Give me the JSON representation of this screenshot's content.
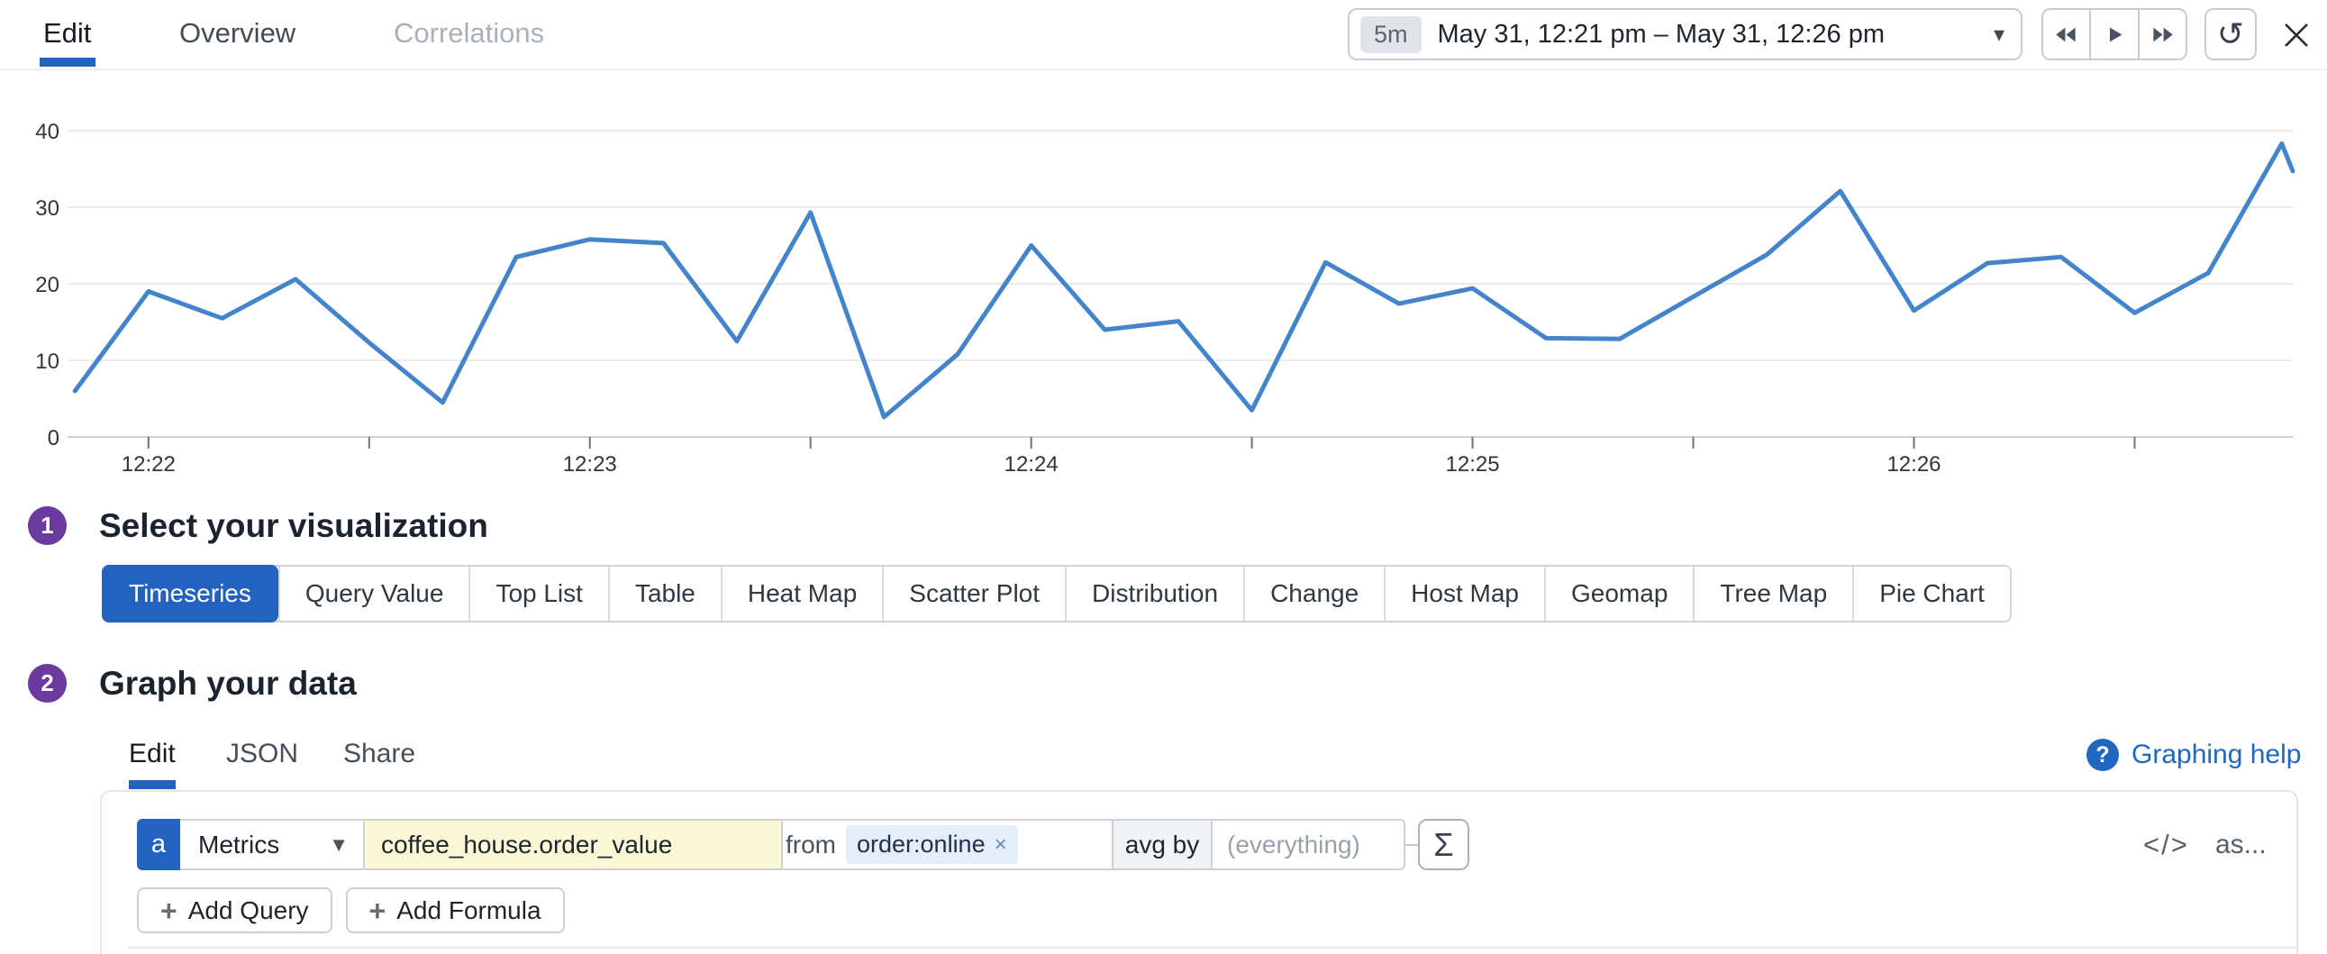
{
  "header": {
    "tabs": [
      {
        "label": "Edit",
        "active": true
      },
      {
        "label": "Overview",
        "active": false
      },
      {
        "label": "Correlations",
        "active": false
      }
    ],
    "time_range": {
      "preset": "5m",
      "label": "May 31, 12:21 pm – May 31, 12:26 pm"
    }
  },
  "icons": {
    "dropdown_caret": "▾",
    "select_caret": "▼",
    "refresh": "↺",
    "question": "?",
    "plus": "+",
    "tag_remove": "×"
  },
  "chart_data": {
    "type": "line",
    "title": "",
    "xlabel": "",
    "ylabel": "",
    "ylim": [
      0,
      40
    ],
    "yticks": [
      0,
      10,
      20,
      30,
      40
    ],
    "grid": true,
    "legend": false,
    "x_unit": "seconds after 12:21 pm",
    "x_domain": [
      49,
      351.5
    ],
    "xticks": [
      {
        "t": 60,
        "label": "12:22"
      },
      {
        "t": 120,
        "label": "12:23"
      },
      {
        "t": 180,
        "label": "12:24"
      },
      {
        "t": 240,
        "label": "12:25"
      },
      {
        "t": 300,
        "label": "12:26"
      }
    ],
    "xticks_minor": [
      90,
      150,
      210,
      270,
      330
    ],
    "series": [
      {
        "name": "coffee_house.order_value",
        "color": "#4384cb",
        "t": [
          50,
          60,
          70,
          80,
          90,
          100,
          110,
          120,
          130,
          140,
          150,
          160,
          170,
          180,
          190,
          200,
          210,
          220,
          230,
          240,
          250,
          260,
          270,
          280,
          290,
          300,
          310,
          320,
          330,
          340,
          350,
          351.5
        ],
        "values": [
          6,
          19,
          15.5,
          20.6,
          12.3,
          4.5,
          23.5,
          25.8,
          25.3,
          12.5,
          29.3,
          2.6,
          10.8,
          25,
          14,
          15.1,
          3.5,
          22.8,
          17.4,
          19.4,
          12.9,
          12.8,
          18.3,
          23.8,
          32.1,
          16.5,
          22.7,
          23.5,
          16.2,
          21.4,
          38.3,
          34.7
        ]
      }
    ]
  },
  "sections": {
    "viz": {
      "number": "1",
      "title": "Select your visualization",
      "selected": "Timeseries",
      "options": [
        "Timeseries",
        "Query Value",
        "Top List",
        "Table",
        "Heat Map",
        "Scatter Plot",
        "Distribution",
        "Change",
        "Host Map",
        "Geomap",
        "Tree Map",
        "Pie Chart"
      ]
    },
    "graph": {
      "number": "2",
      "title": "Graph your data",
      "tabs": [
        "Edit",
        "JSON",
        "Share"
      ],
      "help_label": "Graphing help"
    }
  },
  "query": {
    "letter": "a",
    "source": "Metrics",
    "metric": "coffee_house.order_value",
    "from_label": "from",
    "filter_tag": "order:online",
    "agg_label": "avg by",
    "group_placeholder": "(everything)",
    "sigma": "Σ",
    "code_label": "</>",
    "as_label": "as..."
  },
  "actions": {
    "add_query": "Add Query",
    "add_formula": "Add Formula"
  }
}
